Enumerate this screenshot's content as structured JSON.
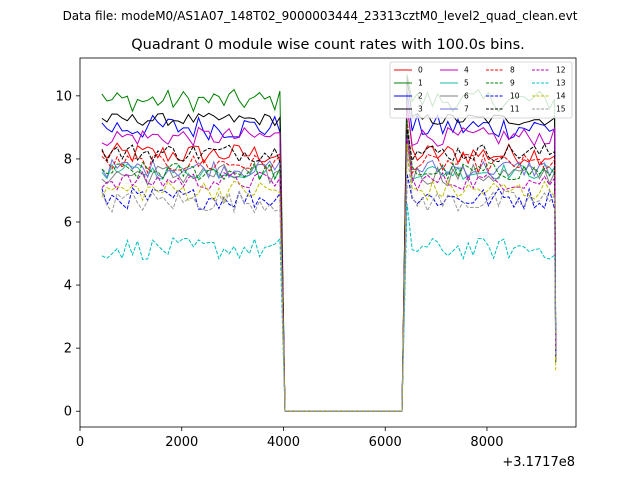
{
  "suptitle": "Data file: modeM0/AS1A07_148T02_9000003444_23313cztM0_level2_quad_clean.evt",
  "chart_data": {
    "type": "line",
    "title": "Quadrant 0 module wise count rates with 100.0s bins.",
    "xlabel": "",
    "ylabel": "",
    "x_offset_label": "+3.1717e8",
    "xlim": [
      0,
      9750
    ],
    "ylim": [
      -0.5,
      11.2
    ],
    "xticks": [
      0,
      2000,
      4000,
      6000,
      8000
    ],
    "xtick_labels": [
      "0",
      "2000",
      "4000",
      "6000",
      "8000"
    ],
    "yticks": [
      0,
      2,
      4,
      6,
      8,
      10
    ],
    "ytick_labels": [
      "0",
      "2",
      "4",
      "6",
      "8",
      "10"
    ],
    "legend_position": "top-right",
    "x_bins": {
      "segment1": [
        430,
        3980,
        100
      ],
      "gap": [
        4030,
        6330
      ],
      "segment2": [
        6430,
        9330,
        100
      ]
    },
    "series": [
      {
        "name": "0",
        "color": "#ff0000",
        "dash": "solid",
        "mean": 8.15,
        "amp": 0.35
      },
      {
        "name": "1",
        "color": "#008000",
        "dash": "solid",
        "mean": 9.85,
        "amp": 0.35
      },
      {
        "name": "2",
        "color": "#0000ff",
        "dash": "solid",
        "mean": 9.0,
        "amp": 0.4
      },
      {
        "name": "3",
        "color": "#000000",
        "dash": "solid",
        "mean": 9.25,
        "amp": 0.2
      },
      {
        "name": "4",
        "color": "#c000c0",
        "dash": "solid",
        "mean": 8.7,
        "amp": 0.3
      },
      {
        "name": "5",
        "color": "#1abc9c",
        "dash": "solid",
        "mean": 7.6,
        "amp": 0.25
      },
      {
        "name": "6",
        "color": "#808080",
        "dash": "solid",
        "mean": 7.5,
        "amp": 0.35
      },
      {
        "name": "7",
        "color": "#7070e0",
        "dash": "solid",
        "mean": 7.7,
        "amp": 0.3
      },
      {
        "name": "8",
        "color": "#ff0000",
        "dash": "dashed",
        "mean": 7.85,
        "amp": 0.3
      },
      {
        "name": "9",
        "color": "#008000",
        "dash": "dashed",
        "mean": 7.6,
        "amp": 0.3
      },
      {
        "name": "10",
        "color": "#0000ff",
        "dash": "dashed",
        "mean": 6.75,
        "amp": 0.35
      },
      {
        "name": "11",
        "color": "#000000",
        "dash": "dashed",
        "mean": 8.2,
        "amp": 0.3
      },
      {
        "name": "12",
        "color": "#c000c0",
        "dash": "dashed",
        "mean": 7.3,
        "amp": 0.3
      },
      {
        "name": "13",
        "color": "#00bfbf",
        "dash": "dashed",
        "mean": 5.15,
        "amp": 0.35
      },
      {
        "name": "14",
        "color": "#bfbf00",
        "dash": "dashed",
        "mean": 7.0,
        "amp": 0.35
      },
      {
        "name": "15",
        "color": "#999999",
        "dash": "dashed",
        "mean": 6.65,
        "amp": 0.35
      }
    ]
  }
}
